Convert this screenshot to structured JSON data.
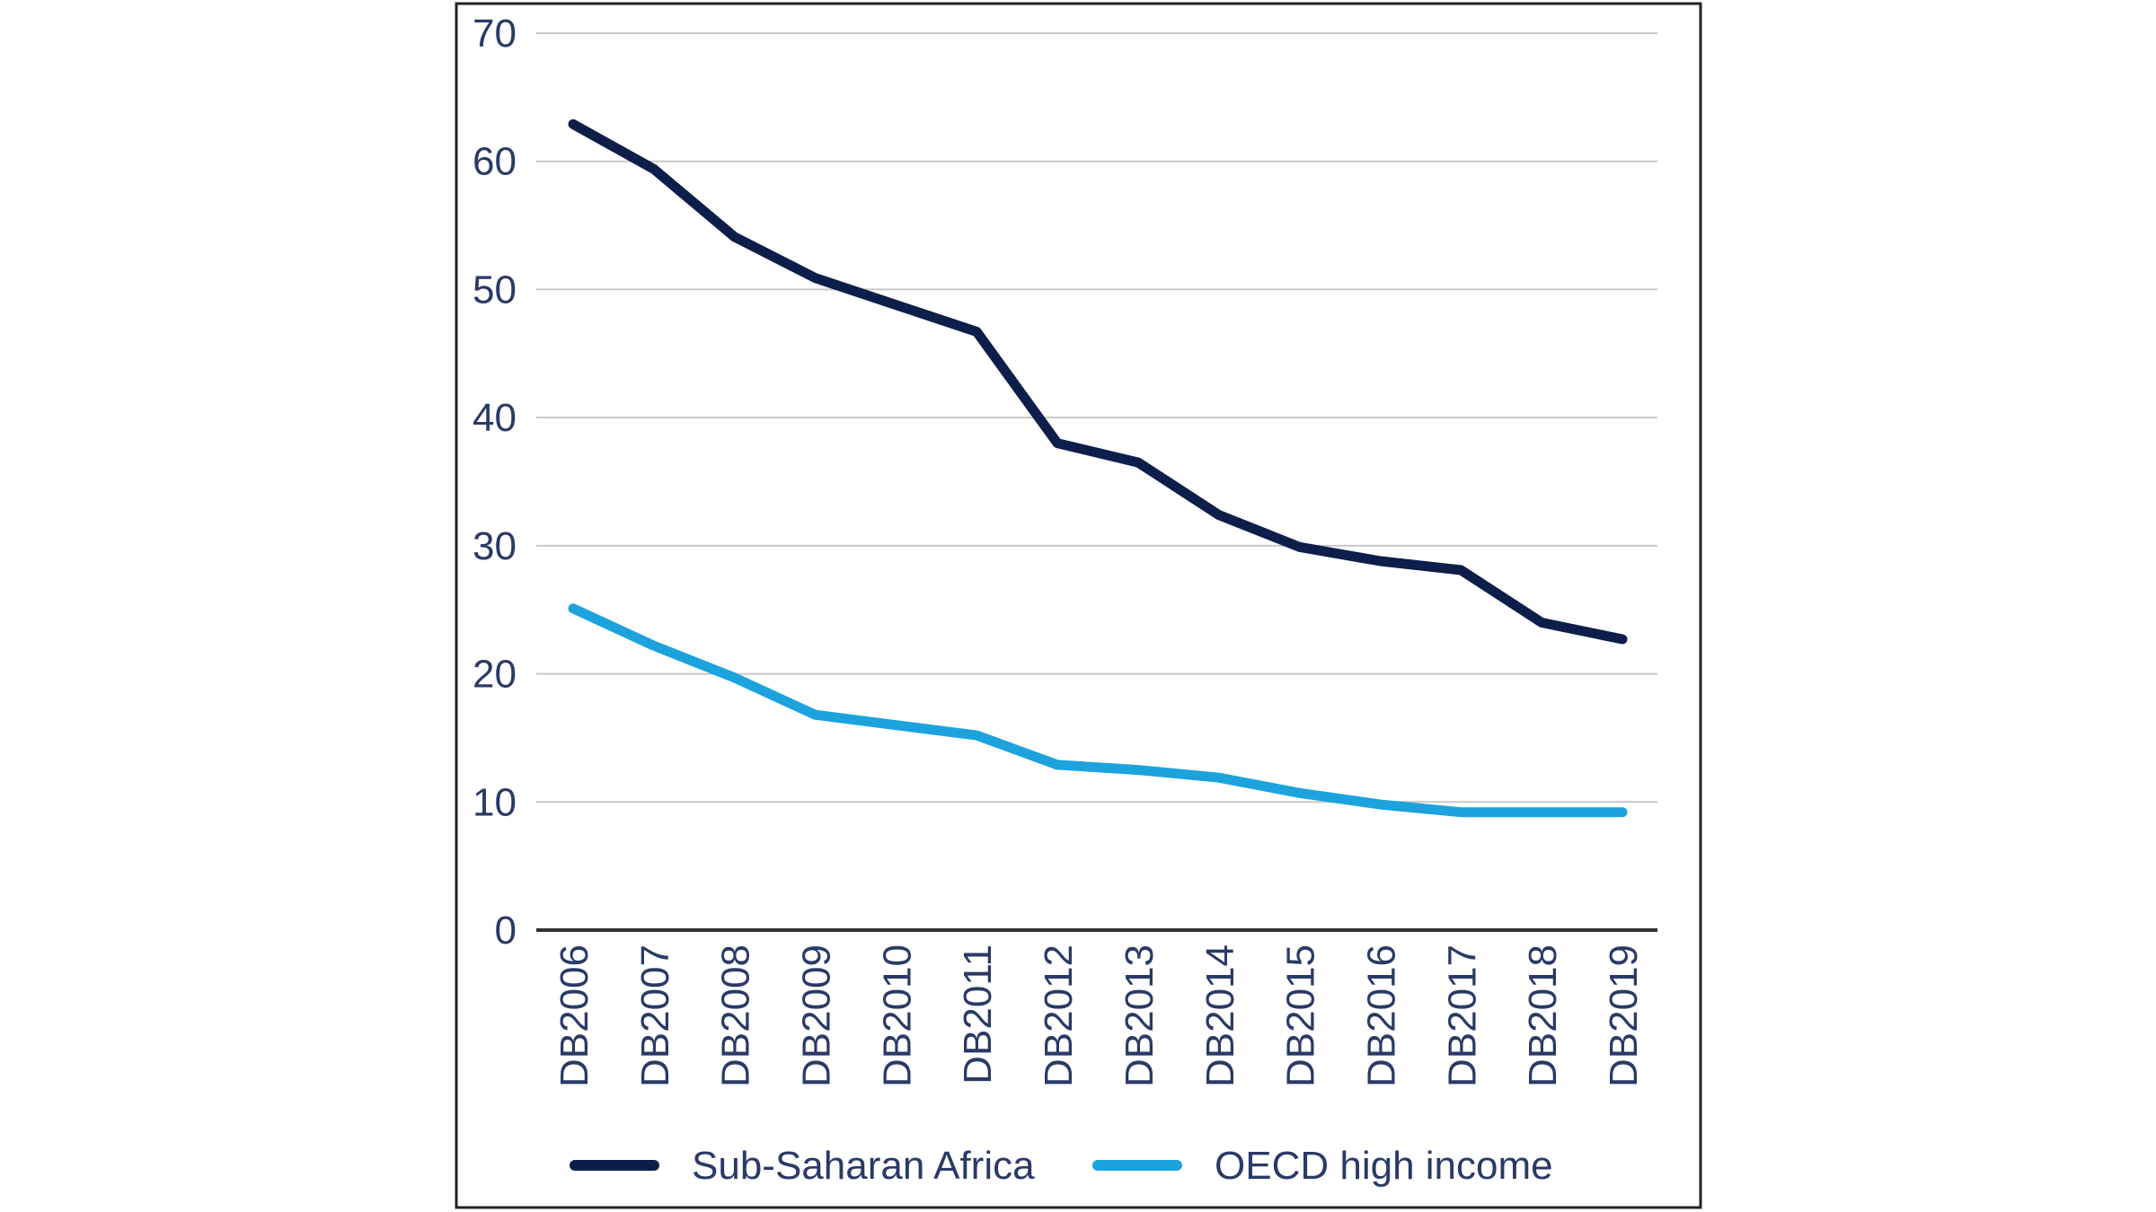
{
  "chart_data": {
    "type": "line",
    "title": "",
    "xlabel": "",
    "ylabel": "",
    "ylim": [
      0,
      70
    ],
    "yticks": [
      0,
      10,
      20,
      30,
      40,
      50,
      60,
      70
    ],
    "grid": true,
    "legend_position": "bottom",
    "categories": [
      "DB2006",
      "DB2007",
      "DB2008",
      "DB2009",
      "DB2010",
      "DB2011",
      "DB2012",
      "DB2013",
      "DB2014",
      "DB2015",
      "DB2016",
      "DB2017",
      "DB2018",
      "DB2019"
    ],
    "series": [
      {
        "name": "Sub-Saharan Africa",
        "color": "#0e1e4b",
        "values": [
          62.9,
          59.4,
          54.1,
          50.9,
          48.8,
          46.7,
          38.0,
          36.5,
          32.4,
          29.9,
          28.8,
          28.1,
          24.0,
          22.7
        ]
      },
      {
        "name": "OECD high income",
        "color": "#1ca3dd",
        "values": [
          25.1,
          22.2,
          19.7,
          16.8,
          16.0,
          15.2,
          12.9,
          12.5,
          11.9,
          10.7,
          9.8,
          9.2,
          9.2,
          9.2
        ]
      }
    ]
  }
}
